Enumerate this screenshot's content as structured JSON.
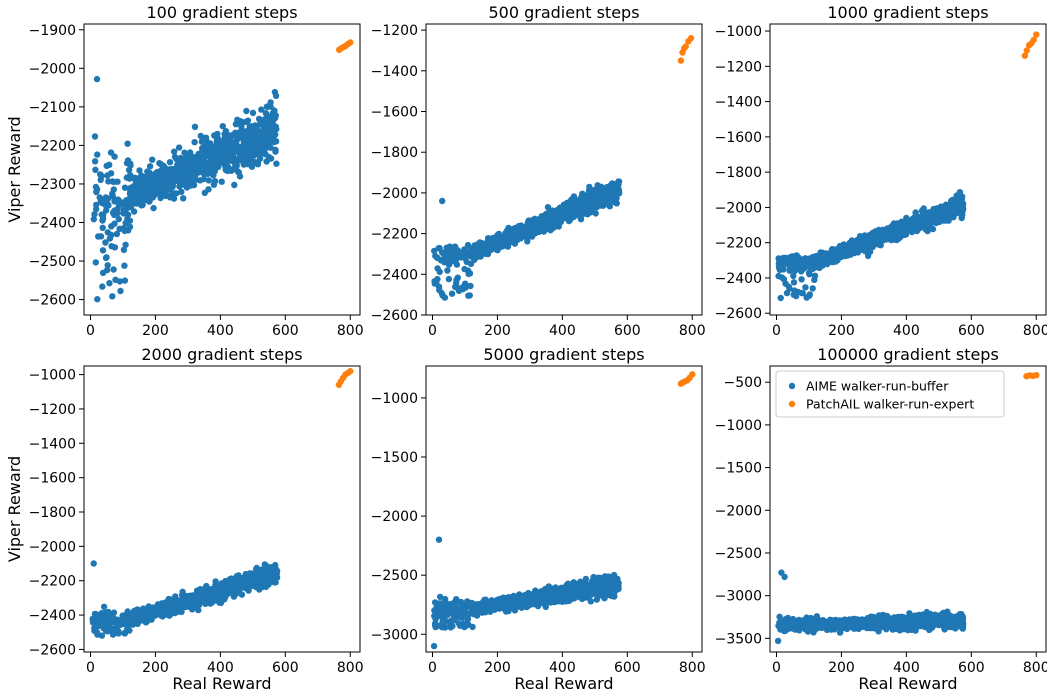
{
  "chart_data": [
    {
      "type": "scatter",
      "title": "100 gradient steps",
      "xlabel": "",
      "ylabel": "Viper Reward",
      "xlim": [
        -20,
        830
      ],
      "ylim": [
        -2640,
        -1885
      ],
      "xticks": [
        0,
        200,
        400,
        600,
        800
      ],
      "yticks": [
        -2600,
        -2500,
        -2400,
        -2300,
        -2200,
        -2100,
        -2000,
        -1900
      ],
      "buffer": {
        "ylo": -2330,
        "yhi": -2160,
        "spread": 70,
        "wedge": 55,
        "low_min": -2600
      },
      "expert": {
        "x": [
          766,
          772,
          779,
          786,
          793,
          800
        ],
        "y": [
          -1952,
          -1948,
          -1945,
          -1942,
          -1937,
          -1933
        ]
      },
      "outliers": {
        "x": [
          20,
          14
        ],
        "y": [
          -2028,
          -2177
        ]
      },
      "legend": null
    },
    {
      "type": "scatter",
      "title": "500 gradient steps",
      "xlabel": "",
      "ylabel": "",
      "xlim": [
        -20,
        830
      ],
      "ylim": [
        -2600,
        -1170
      ],
      "xticks": [
        0,
        200,
        400,
        600,
        800
      ],
      "yticks": [
        -2600,
        -2400,
        -2200,
        -2000,
        -1800,
        -1600,
        -1400,
        -1200
      ],
      "buffer": {
        "ylo": -2300,
        "yhi": -1980,
        "spread": 55,
        "wedge": 20,
        "low_min": -2520
      },
      "expert": {
        "x": [
          765,
          770,
          775,
          780,
          788,
          796
        ],
        "y": [
          -1350,
          -1310,
          -1290,
          -1280,
          -1255,
          -1240
        ]
      },
      "outliers": {
        "x": [
          30
        ],
        "y": [
          -2040
        ]
      },
      "legend": null
    },
    {
      "type": "scatter",
      "title": "1000 gradient steps",
      "xlabel": "",
      "ylabel": "",
      "xlim": [
        -20,
        830
      ],
      "ylim": [
        -2610,
        -960
      ],
      "xticks": [
        0,
        200,
        400,
        600,
        800
      ],
      "yticks": [
        -2600,
        -2400,
        -2200,
        -2000,
        -1800,
        -1600,
        -1400,
        -1200,
        -1000
      ],
      "buffer": {
        "ylo": -2310,
        "yhi": -1985,
        "spread": 55,
        "wedge": 20,
        "low_min": -2520
      },
      "expert": {
        "x": [
          765,
          771,
          778,
          785,
          792,
          800
        ],
        "y": [
          -1140,
          -1110,
          -1080,
          -1070,
          -1050,
          -1020
        ]
      },
      "outliers": {
        "x": [],
        "y": []
      },
      "legend": null
    },
    {
      "type": "scatter",
      "title": "2000 gradient steps",
      "xlabel": "Real Reward",
      "ylabel": "Viper Reward",
      "xlim": [
        -20,
        830
      ],
      "ylim": [
        -2615,
        -950
      ],
      "xticks": [
        0,
        200,
        400,
        600,
        800
      ],
      "yticks": [
        -2600,
        -2400,
        -2200,
        -2000,
        -1800,
        -1600,
        -1400,
        -1200,
        -1000
      ],
      "buffer": {
        "ylo": -2430,
        "yhi": -2150,
        "spread": 60,
        "wedge": 30,
        "low_min": -2520
      },
      "expert": {
        "x": [
          765,
          771,
          778,
          785,
          793,
          800
        ],
        "y": [
          -1060,
          -1040,
          -1020,
          -1000,
          -990,
          -980
        ]
      },
      "outliers": {
        "x": [
          10,
          20
        ],
        "y": [
          -2100,
          -2500
        ]
      },
      "legend": null
    },
    {
      "type": "scatter",
      "title": "5000 gradient steps",
      "xlabel": "Real Reward",
      "ylabel": "",
      "xlim": [
        -20,
        830
      ],
      "ylim": [
        -3150,
        -730
      ],
      "xticks": [
        0,
        200,
        400,
        600,
        800
      ],
      "yticks": [
        -3000,
        -2500,
        -2000,
        -1500,
        -1000
      ],
      "buffer": {
        "ylo": -2790,
        "yhi": -2580,
        "spread": 80,
        "wedge": 40,
        "low_min": -2950
      },
      "expert": {
        "x": [
          765,
          771,
          778,
          785,
          792,
          800
        ],
        "y": [
          -880,
          -870,
          -860,
          -850,
          -830,
          -800
        ]
      },
      "outliers": {
        "x": [
          20,
          8,
          5
        ],
        "y": [
          -2200,
          -2730,
          -3100
        ]
      },
      "legend": null
    },
    {
      "type": "scatter",
      "title": "100000 gradient steps",
      "xlabel": "Real Reward",
      "ylabel": "",
      "xlim": [
        -20,
        830
      ],
      "ylim": [
        -3660,
        -310
      ],
      "xticks": [
        0,
        200,
        400,
        600,
        800
      ],
      "yticks": [
        -3500,
        -3000,
        -2500,
        -2000,
        -1500,
        -1000,
        -500
      ],
      "buffer": {
        "ylo": -3340,
        "yhi": -3290,
        "spread": 90,
        "wedge": 40,
        "low_min": -3400
      },
      "expert": {
        "x": [
          770,
          780,
          790,
          800
        ],
        "y": [
          -430,
          -420,
          -425,
          -418
        ]
      },
      "outliers": {
        "x": [
          15,
          5,
          25
        ],
        "y": [
          -2730,
          -3530,
          -2780
        ]
      },
      "legend": {
        "placement": "upper-left",
        "entries": [
          "AIME walker-run-buffer",
          "PatchAIL walker-run-expert"
        ]
      }
    }
  ],
  "colors": {
    "buffer": "#1f77b4",
    "expert": "#ff7f0e"
  }
}
